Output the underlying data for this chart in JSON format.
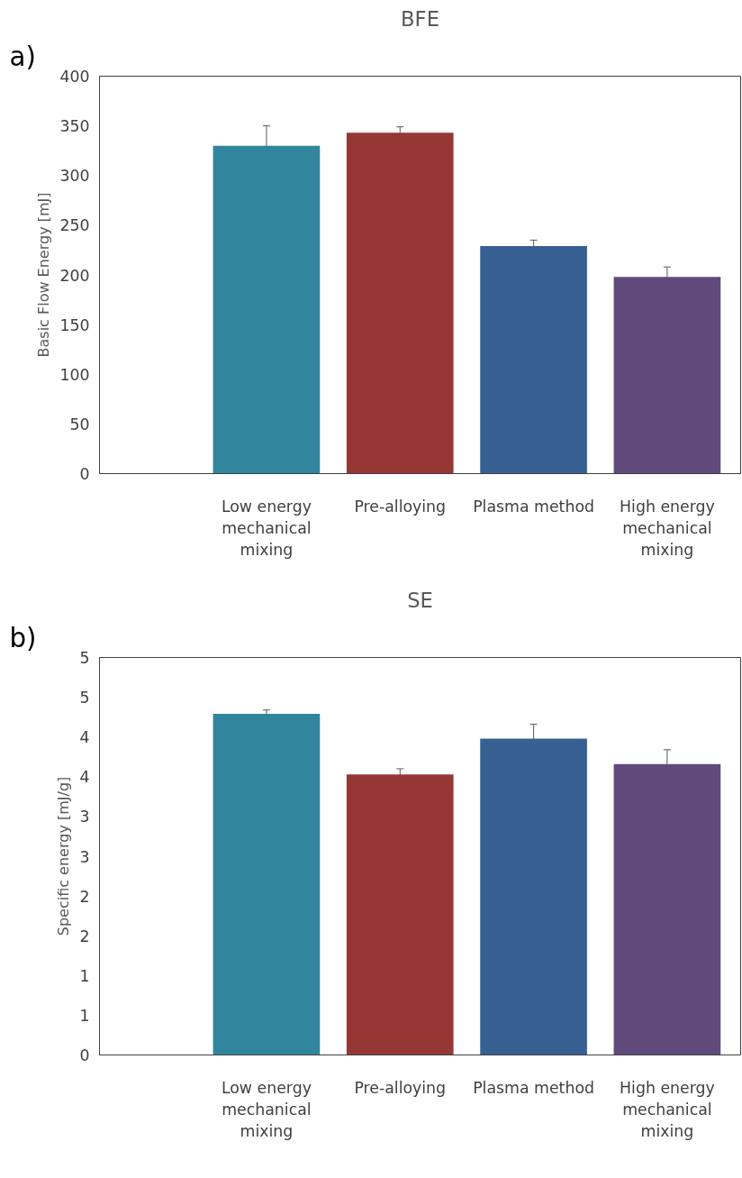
{
  "chart_data": [
    {
      "type": "bar",
      "title": "BFE",
      "ylabel": "Basic Flow Energy [mJ]",
      "annotations": [
        "a)"
      ],
      "categories": [
        "Low energy mechanical mixing",
        "Pre-alloying",
        "Plasma method",
        "High energy mechanical mixing"
      ],
      "values": [
        330,
        343,
        229,
        198
      ],
      "errors": [
        20,
        6,
        6,
        10
      ],
      "colors": [
        "#31859c",
        "#953735",
        "#376092",
        "#604a7b"
      ],
      "ylim": [
        0,
        400
      ],
      "yticks": [
        0,
        50,
        100,
        150,
        200,
        250,
        300,
        350,
        400
      ],
      "grid": false
    },
    {
      "type": "bar",
      "title": "SE",
      "ylabel": "Specific energy [mJ/g]",
      "annotations": [
        "b)"
      ],
      "categories": [
        "Low energy mechanical mixing",
        "Pre-alloying",
        "Plasma method",
        "High energy mechanical mixing"
      ],
      "values": [
        4.29,
        3.53,
        3.98,
        3.66
      ],
      "errors": [
        0.05,
        0.07,
        0.18,
        0.18
      ],
      "colors": [
        "#31859c",
        "#953735",
        "#376092",
        "#604a7b"
      ],
      "ylim": [
        0,
        5
      ],
      "yticks": [
        0,
        {
          "value": 0.5,
          "label": "1"
        },
        1,
        {
          "value": 1.5,
          "label": "2"
        },
        2,
        {
          "value": 2.5,
          "label": "3"
        },
        3,
        {
          "value": 3.5,
          "label": "4"
        },
        4,
        {
          "value": 4.5,
          "label": "5"
        },
        5
      ],
      "grid": false
    }
  ]
}
